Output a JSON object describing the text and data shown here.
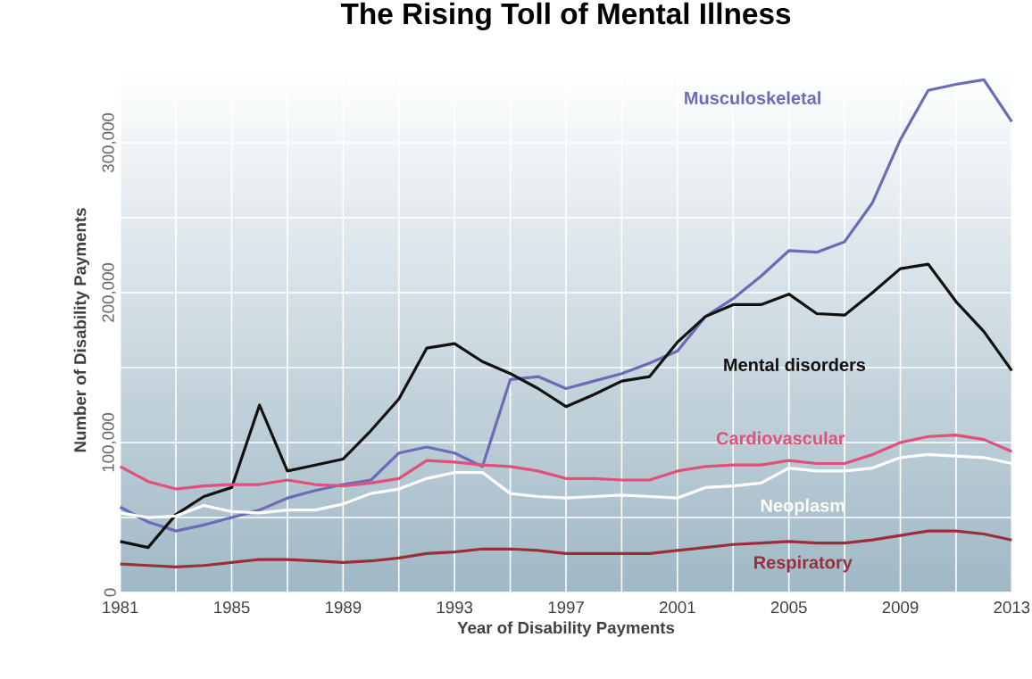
{
  "chart_data": {
    "type": "line",
    "title": "The Rising Toll of Mental Illness",
    "xlabel": "Year of Disability Payments",
    "ylabel": "Number of Disability Payments",
    "x": [
      1981,
      1982,
      1983,
      1984,
      1985,
      1986,
      1987,
      1988,
      1989,
      1990,
      1991,
      1992,
      1993,
      1994,
      1995,
      1996,
      1997,
      1998,
      1999,
      2000,
      2001,
      2002,
      2003,
      2004,
      2005,
      2006,
      2007,
      2008,
      2009,
      2010,
      2011,
      2012,
      2013
    ],
    "series": [
      {
        "name": "Musculoskeletal",
        "color": "#6b6bb8",
        "values": [
          57000,
          47000,
          41000,
          45000,
          50000,
          55000,
          63000,
          68000,
          72000,
          75000,
          93000,
          97000,
          93000,
          84000,
          142000,
          144000,
          136000,
          141000,
          146000,
          153000,
          161000,
          184000,
          196000,
          211000,
          228000,
          227000,
          234000,
          260000,
          302000,
          335000,
          339000,
          342000,
          314000
        ]
      },
      {
        "name": "Mental disorders",
        "color": "#111111",
        "values": [
          34000,
          30000,
          52000,
          64000,
          70000,
          125000,
          81000,
          85000,
          89000,
          108000,
          129000,
          163000,
          166000,
          154000,
          146000,
          136000,
          124000,
          132000,
          141000,
          144000,
          167000,
          184000,
          192000,
          192000,
          199000,
          186000,
          185000,
          200000,
          216000,
          219000,
          194000,
          174000,
          148000
        ]
      },
      {
        "name": "Cardiovascular",
        "color": "#e0507a",
        "values": [
          84000,
          74000,
          69000,
          71000,
          72000,
          72000,
          75000,
          72000,
          71000,
          73000,
          76000,
          88000,
          87000,
          85000,
          84000,
          81000,
          76000,
          76000,
          75000,
          75000,
          81000,
          84000,
          85000,
          85000,
          88000,
          86000,
          86000,
          92000,
          100000,
          104000,
          105000,
          102000,
          94000
        ]
      },
      {
        "name": "Neoplasm",
        "color": "#ffffff",
        "values": [
          53000,
          50000,
          51000,
          58000,
          54000,
          53000,
          55000,
          55000,
          59000,
          66000,
          69000,
          76000,
          80000,
          80000,
          66000,
          64000,
          63000,
          64000,
          65000,
          64000,
          63000,
          70000,
          71000,
          73000,
          83000,
          81000,
          81000,
          83000,
          90000,
          92000,
          91000,
          90000,
          86000
        ]
      },
      {
        "name": "Respiratory",
        "color": "#9a2f3a",
        "values": [
          19000,
          18000,
          17000,
          18000,
          20000,
          22000,
          22000,
          21000,
          20000,
          21000,
          23000,
          26000,
          27000,
          29000,
          29000,
          28000,
          26000,
          26000,
          26000,
          26000,
          28000,
          30000,
          32000,
          33000,
          34000,
          33000,
          33000,
          35000,
          38000,
          41000,
          41000,
          39000,
          35000
        ]
      }
    ],
    "xlim": [
      1981,
      2013
    ],
    "ylim": [
      0,
      350000
    ],
    "xticks": [
      1981,
      {
        "value": 1983,
        "label": null
      },
      1985,
      {
        "value": 1987,
        "label": null
      },
      1989,
      {
        "value": 1991,
        "label": null
      },
      1993,
      {
        "value": 1995,
        "label": null
      },
      1997,
      {
        "value": 1999,
        "label": null
      },
      2001,
      {
        "value": 2003,
        "label": null
      },
      2005,
      {
        "value": 2007,
        "label": null
      },
      2009,
      {
        "value": 2011,
        "label": null
      },
      2013
    ],
    "yticks": [
      {
        "value": 0,
        "label": "0"
      },
      {
        "value": 50000,
        "label": null
      },
      {
        "value": 100000,
        "label": "100,000"
      },
      {
        "value": 150000,
        "label": null
      },
      {
        "value": 200000,
        "label": "200,000"
      },
      {
        "value": 250000,
        "label": null
      },
      {
        "value": 300000,
        "label": "300,000"
      }
    ],
    "grid": true,
    "line_style": "solid"
  }
}
